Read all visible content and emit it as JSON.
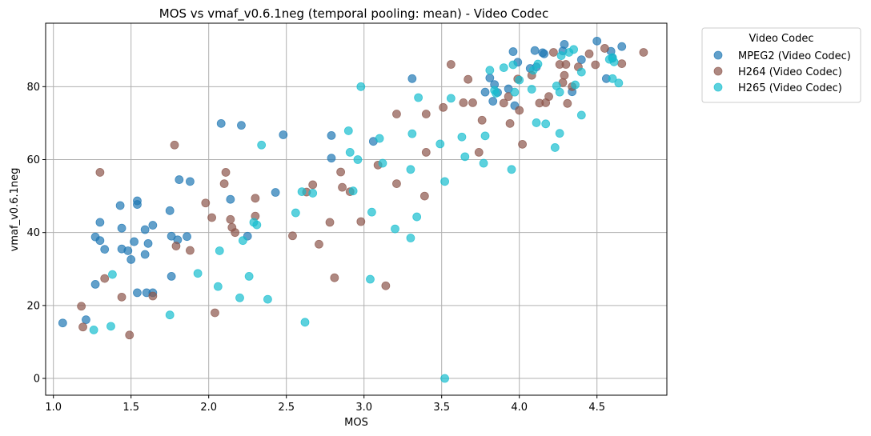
{
  "chart_data": {
    "type": "scatter",
    "title": "MOS vs vmaf_v0.6.1neg (temporal pooling: mean) - Video Codec",
    "xlabel": "MOS",
    "ylabel": "vmaf_v0.6.1neg",
    "xlim": [
      0.95,
      4.95
    ],
    "ylim": [
      -4.6,
      97.4
    ],
    "xticks": [
      1.0,
      1.5,
      2.0,
      2.5,
      3.0,
      3.5,
      4.0,
      4.5
    ],
    "xtick_labels": [
      "1.0",
      "1.5",
      "2.0",
      "2.5",
      "3.0",
      "3.5",
      "4.0",
      "4.5"
    ],
    "yticks": [
      0,
      20,
      40,
      60,
      80
    ],
    "ytick_labels": [
      "0",
      "20",
      "40",
      "60",
      "80"
    ],
    "grid": true,
    "legend": {
      "title": "Video Codec",
      "placement": "outside-right-top"
    },
    "series": [
      {
        "name": "MPEG2 (Video Codec)",
        "color": "#1f77b4",
        "points": [
          [
            1.06,
            15.2
          ],
          [
            1.21,
            16.1
          ],
          [
            1.27,
            25.8
          ],
          [
            1.27,
            38.8
          ],
          [
            1.3,
            42.8
          ],
          [
            1.3,
            37.8
          ],
          [
            1.33,
            35.4
          ],
          [
            1.43,
            47.4
          ],
          [
            1.44,
            41.2
          ],
          [
            1.44,
            35.5
          ],
          [
            1.48,
            35.0
          ],
          [
            1.5,
            32.6
          ],
          [
            1.52,
            37.5
          ],
          [
            1.54,
            48.7
          ],
          [
            1.54,
            47.7
          ],
          [
            1.54,
            23.5
          ],
          [
            1.59,
            40.8
          ],
          [
            1.59,
            34.0
          ],
          [
            1.6,
            23.5
          ],
          [
            1.61,
            37.0
          ],
          [
            1.64,
            42.0
          ],
          [
            1.64,
            23.5
          ],
          [
            1.75,
            46.0
          ],
          [
            1.76,
            39.0
          ],
          [
            1.76,
            28.0
          ],
          [
            1.8,
            38.0
          ],
          [
            1.81,
            54.5
          ],
          [
            1.86,
            38.9
          ],
          [
            1.88,
            54.0
          ],
          [
            2.08,
            69.9
          ],
          [
            2.14,
            49.1
          ],
          [
            2.21,
            69.4
          ],
          [
            2.25,
            39.0
          ],
          [
            2.43,
            51.0
          ],
          [
            2.48,
            66.8
          ],
          [
            2.79,
            66.6
          ],
          [
            2.79,
            60.4
          ],
          [
            3.06,
            65.0
          ],
          [
            3.31,
            82.2
          ],
          [
            3.78,
            78.5
          ],
          [
            3.81,
            82.4
          ],
          [
            3.83,
            76.0
          ],
          [
            3.84,
            80.6
          ],
          [
            3.86,
            78.4
          ],
          [
            3.93,
            79.4
          ],
          [
            3.96,
            89.6
          ],
          [
            3.97,
            74.8
          ],
          [
            3.99,
            86.7
          ],
          [
            4.07,
            85.0
          ],
          [
            4.1,
            89.9
          ],
          [
            4.11,
            85.4
          ],
          [
            4.15,
            89.3
          ],
          [
            4.16,
            89.0
          ],
          [
            4.28,
            89.8
          ],
          [
            4.29,
            91.6
          ],
          [
            4.34,
            78.6
          ],
          [
            4.4,
            87.4
          ],
          [
            4.5,
            92.5
          ],
          [
            4.56,
            82.2
          ],
          [
            4.59,
            89.7
          ],
          [
            4.6,
            87.8
          ],
          [
            4.66,
            91.0
          ]
        ]
      },
      {
        "name": "H264 (Video Codec)",
        "color": "#8c564b",
        "points": [
          [
            1.18,
            19.8
          ],
          [
            1.19,
            14.1
          ],
          [
            1.3,
            56.5
          ],
          [
            1.33,
            27.4
          ],
          [
            1.44,
            22.3
          ],
          [
            1.49,
            11.9
          ],
          [
            1.64,
            22.6
          ],
          [
            1.78,
            64.0
          ],
          [
            1.79,
            36.3
          ],
          [
            1.88,
            35.1
          ],
          [
            1.98,
            48.1
          ],
          [
            2.02,
            44.1
          ],
          [
            2.04,
            18.0
          ],
          [
            2.1,
            53.4
          ],
          [
            2.11,
            56.5
          ],
          [
            2.14,
            43.6
          ],
          [
            2.15,
            41.4
          ],
          [
            2.17,
            40.0
          ],
          [
            2.3,
            49.4
          ],
          [
            2.3,
            44.5
          ],
          [
            2.54,
            39.1
          ],
          [
            2.63,
            51.1
          ],
          [
            2.67,
            53.1
          ],
          [
            2.71,
            36.8
          ],
          [
            2.78,
            42.8
          ],
          [
            2.81,
            27.6
          ],
          [
            2.85,
            56.6
          ],
          [
            2.86,
            52.4
          ],
          [
            2.91,
            51.2
          ],
          [
            2.98,
            43.0
          ],
          [
            3.09,
            58.5
          ],
          [
            3.14,
            25.4
          ],
          [
            3.21,
            53.4
          ],
          [
            3.21,
            72.5
          ],
          [
            3.39,
            50.0
          ],
          [
            3.4,
            62.0
          ],
          [
            3.4,
            72.5
          ],
          [
            3.51,
            74.3
          ],
          [
            3.56,
            86.1
          ],
          [
            3.64,
            75.6
          ],
          [
            3.67,
            82.0
          ],
          [
            3.7,
            75.6
          ],
          [
            3.74,
            62.0
          ],
          [
            3.76,
            70.8
          ],
          [
            3.9,
            75.5
          ],
          [
            3.93,
            77.3
          ],
          [
            3.94,
            69.9
          ],
          [
            3.99,
            82.1
          ],
          [
            4.0,
            73.5
          ],
          [
            4.02,
            64.2
          ],
          [
            4.08,
            83.1
          ],
          [
            4.13,
            75.5
          ],
          [
            4.17,
            75.6
          ],
          [
            4.19,
            77.3
          ],
          [
            4.22,
            89.4
          ],
          [
            4.26,
            86.1
          ],
          [
            4.28,
            81.1
          ],
          [
            4.29,
            83.1
          ],
          [
            4.3,
            86.1
          ],
          [
            4.31,
            75.4
          ],
          [
            4.34,
            80.0
          ],
          [
            4.38,
            85.4
          ],
          [
            4.45,
            89.0
          ],
          [
            4.49,
            86.0
          ],
          [
            4.55,
            90.5
          ],
          [
            4.66,
            86.3
          ],
          [
            4.8,
            89.4
          ]
        ]
      },
      {
        "name": "H265 (Video Codec)",
        "color": "#17becf",
        "points": [
          [
            1.26,
            13.3
          ],
          [
            1.37,
            14.3
          ],
          [
            1.38,
            28.5
          ],
          [
            1.75,
            17.4
          ],
          [
            1.93,
            28.8
          ],
          [
            2.06,
            25.2
          ],
          [
            2.07,
            35.0
          ],
          [
            2.2,
            22.1
          ],
          [
            2.22,
            37.8
          ],
          [
            2.26,
            28.0
          ],
          [
            2.29,
            42.8
          ],
          [
            2.31,
            42.1
          ],
          [
            2.34,
            64.0
          ],
          [
            2.38,
            21.7
          ],
          [
            2.56,
            45.4
          ],
          [
            2.6,
            51.2
          ],
          [
            2.62,
            15.4
          ],
          [
            2.67,
            50.8
          ],
          [
            2.9,
            67.9
          ],
          [
            2.91,
            62.0
          ],
          [
            2.93,
            51.4
          ],
          [
            2.96,
            60.0
          ],
          [
            2.98,
            80.0
          ],
          [
            3.04,
            27.2
          ],
          [
            3.05,
            45.6
          ],
          [
            3.1,
            65.8
          ],
          [
            3.12,
            59.0
          ],
          [
            3.2,
            41.0
          ],
          [
            3.3,
            38.5
          ],
          [
            3.3,
            57.3
          ],
          [
            3.31,
            67.1
          ],
          [
            3.34,
            44.3
          ],
          [
            3.35,
            77.0
          ],
          [
            3.49,
            64.3
          ],
          [
            3.52,
            54.0
          ],
          [
            3.52,
            0.0
          ],
          [
            3.56,
            76.8
          ],
          [
            3.63,
            66.2
          ],
          [
            3.65,
            60.8
          ],
          [
            3.77,
            59.0
          ],
          [
            3.78,
            66.5
          ],
          [
            3.81,
            84.5
          ],
          [
            3.84,
            79.0
          ],
          [
            3.85,
            78.2
          ],
          [
            3.9,
            85.2
          ],
          [
            3.95,
            57.3
          ],
          [
            3.96,
            86.0
          ],
          [
            3.97,
            78.5
          ],
          [
            4.0,
            81.8
          ],
          [
            4.08,
            79.3
          ],
          [
            4.09,
            84.5
          ],
          [
            4.11,
            70.1
          ],
          [
            4.12,
            86.2
          ],
          [
            4.17,
            69.8
          ],
          [
            4.23,
            63.3
          ],
          [
            4.24,
            80.2
          ],
          [
            4.26,
            67.2
          ],
          [
            4.26,
            78.5
          ],
          [
            4.27,
            88.5
          ],
          [
            4.32,
            89.4
          ],
          [
            4.35,
            90.2
          ],
          [
            4.36,
            80.5
          ],
          [
            4.4,
            72.2
          ],
          [
            4.4,
            84.0
          ],
          [
            4.58,
            87.5
          ],
          [
            4.6,
            82.2
          ],
          [
            4.6,
            88.0
          ],
          [
            4.61,
            86.8
          ],
          [
            4.64,
            81.0
          ]
        ]
      }
    ]
  }
}
